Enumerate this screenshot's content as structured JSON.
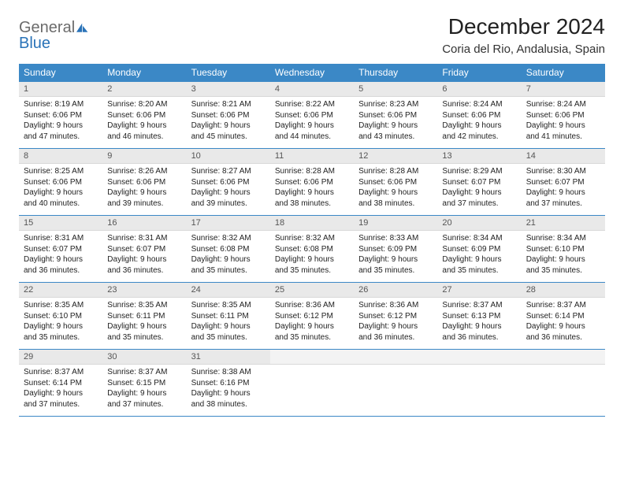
{
  "logo": {
    "part1": "General",
    "part2": "Blue"
  },
  "title": "December 2024",
  "location": "Coria del Rio, Andalusia, Spain",
  "colors": {
    "header_bg": "#3b88c6",
    "header_text": "#ffffff",
    "daynum_bg": "#e9e9e9",
    "row_border": "#3b88c6",
    "logo_gray": "#6b6b6b",
    "logo_blue": "#2a73b8"
  },
  "weekdays": [
    "Sunday",
    "Monday",
    "Tuesday",
    "Wednesday",
    "Thursday",
    "Friday",
    "Saturday"
  ],
  "weeks": [
    [
      {
        "n": "1",
        "sr": "Sunrise: 8:19 AM",
        "ss": "Sunset: 6:06 PM",
        "d1": "Daylight: 9 hours",
        "d2": "and 47 minutes."
      },
      {
        "n": "2",
        "sr": "Sunrise: 8:20 AM",
        "ss": "Sunset: 6:06 PM",
        "d1": "Daylight: 9 hours",
        "d2": "and 46 minutes."
      },
      {
        "n": "3",
        "sr": "Sunrise: 8:21 AM",
        "ss": "Sunset: 6:06 PM",
        "d1": "Daylight: 9 hours",
        "d2": "and 45 minutes."
      },
      {
        "n": "4",
        "sr": "Sunrise: 8:22 AM",
        "ss": "Sunset: 6:06 PM",
        "d1": "Daylight: 9 hours",
        "d2": "and 44 minutes."
      },
      {
        "n": "5",
        "sr": "Sunrise: 8:23 AM",
        "ss": "Sunset: 6:06 PM",
        "d1": "Daylight: 9 hours",
        "d2": "and 43 minutes."
      },
      {
        "n": "6",
        "sr": "Sunrise: 8:24 AM",
        "ss": "Sunset: 6:06 PM",
        "d1": "Daylight: 9 hours",
        "d2": "and 42 minutes."
      },
      {
        "n": "7",
        "sr": "Sunrise: 8:24 AM",
        "ss": "Sunset: 6:06 PM",
        "d1": "Daylight: 9 hours",
        "d2": "and 41 minutes."
      }
    ],
    [
      {
        "n": "8",
        "sr": "Sunrise: 8:25 AM",
        "ss": "Sunset: 6:06 PM",
        "d1": "Daylight: 9 hours",
        "d2": "and 40 minutes."
      },
      {
        "n": "9",
        "sr": "Sunrise: 8:26 AM",
        "ss": "Sunset: 6:06 PM",
        "d1": "Daylight: 9 hours",
        "d2": "and 39 minutes."
      },
      {
        "n": "10",
        "sr": "Sunrise: 8:27 AM",
        "ss": "Sunset: 6:06 PM",
        "d1": "Daylight: 9 hours",
        "d2": "and 39 minutes."
      },
      {
        "n": "11",
        "sr": "Sunrise: 8:28 AM",
        "ss": "Sunset: 6:06 PM",
        "d1": "Daylight: 9 hours",
        "d2": "and 38 minutes."
      },
      {
        "n": "12",
        "sr": "Sunrise: 8:28 AM",
        "ss": "Sunset: 6:06 PM",
        "d1": "Daylight: 9 hours",
        "d2": "and 38 minutes."
      },
      {
        "n": "13",
        "sr": "Sunrise: 8:29 AM",
        "ss": "Sunset: 6:07 PM",
        "d1": "Daylight: 9 hours",
        "d2": "and 37 minutes."
      },
      {
        "n": "14",
        "sr": "Sunrise: 8:30 AM",
        "ss": "Sunset: 6:07 PM",
        "d1": "Daylight: 9 hours",
        "d2": "and 37 minutes."
      }
    ],
    [
      {
        "n": "15",
        "sr": "Sunrise: 8:31 AM",
        "ss": "Sunset: 6:07 PM",
        "d1": "Daylight: 9 hours",
        "d2": "and 36 minutes."
      },
      {
        "n": "16",
        "sr": "Sunrise: 8:31 AM",
        "ss": "Sunset: 6:07 PM",
        "d1": "Daylight: 9 hours",
        "d2": "and 36 minutes."
      },
      {
        "n": "17",
        "sr": "Sunrise: 8:32 AM",
        "ss": "Sunset: 6:08 PM",
        "d1": "Daylight: 9 hours",
        "d2": "and 35 minutes."
      },
      {
        "n": "18",
        "sr": "Sunrise: 8:32 AM",
        "ss": "Sunset: 6:08 PM",
        "d1": "Daylight: 9 hours",
        "d2": "and 35 minutes."
      },
      {
        "n": "19",
        "sr": "Sunrise: 8:33 AM",
        "ss": "Sunset: 6:09 PM",
        "d1": "Daylight: 9 hours",
        "d2": "and 35 minutes."
      },
      {
        "n": "20",
        "sr": "Sunrise: 8:34 AM",
        "ss": "Sunset: 6:09 PM",
        "d1": "Daylight: 9 hours",
        "d2": "and 35 minutes."
      },
      {
        "n": "21",
        "sr": "Sunrise: 8:34 AM",
        "ss": "Sunset: 6:10 PM",
        "d1": "Daylight: 9 hours",
        "d2": "and 35 minutes."
      }
    ],
    [
      {
        "n": "22",
        "sr": "Sunrise: 8:35 AM",
        "ss": "Sunset: 6:10 PM",
        "d1": "Daylight: 9 hours",
        "d2": "and 35 minutes."
      },
      {
        "n": "23",
        "sr": "Sunrise: 8:35 AM",
        "ss": "Sunset: 6:11 PM",
        "d1": "Daylight: 9 hours",
        "d2": "and 35 minutes."
      },
      {
        "n": "24",
        "sr": "Sunrise: 8:35 AM",
        "ss": "Sunset: 6:11 PM",
        "d1": "Daylight: 9 hours",
        "d2": "and 35 minutes."
      },
      {
        "n": "25",
        "sr": "Sunrise: 8:36 AM",
        "ss": "Sunset: 6:12 PM",
        "d1": "Daylight: 9 hours",
        "d2": "and 35 minutes."
      },
      {
        "n": "26",
        "sr": "Sunrise: 8:36 AM",
        "ss": "Sunset: 6:12 PM",
        "d1": "Daylight: 9 hours",
        "d2": "and 36 minutes."
      },
      {
        "n": "27",
        "sr": "Sunrise: 8:37 AM",
        "ss": "Sunset: 6:13 PM",
        "d1": "Daylight: 9 hours",
        "d2": "and 36 minutes."
      },
      {
        "n": "28",
        "sr": "Sunrise: 8:37 AM",
        "ss": "Sunset: 6:14 PM",
        "d1": "Daylight: 9 hours",
        "d2": "and 36 minutes."
      }
    ],
    [
      {
        "n": "29",
        "sr": "Sunrise: 8:37 AM",
        "ss": "Sunset: 6:14 PM",
        "d1": "Daylight: 9 hours",
        "d2": "and 37 minutes."
      },
      {
        "n": "30",
        "sr": "Sunrise: 8:37 AM",
        "ss": "Sunset: 6:15 PM",
        "d1": "Daylight: 9 hours",
        "d2": "and 37 minutes."
      },
      {
        "n": "31",
        "sr": "Sunrise: 8:38 AM",
        "ss": "Sunset: 6:16 PM",
        "d1": "Daylight: 9 hours",
        "d2": "and 38 minutes."
      },
      {
        "empty": true
      },
      {
        "empty": true
      },
      {
        "empty": true
      },
      {
        "empty": true
      }
    ]
  ]
}
